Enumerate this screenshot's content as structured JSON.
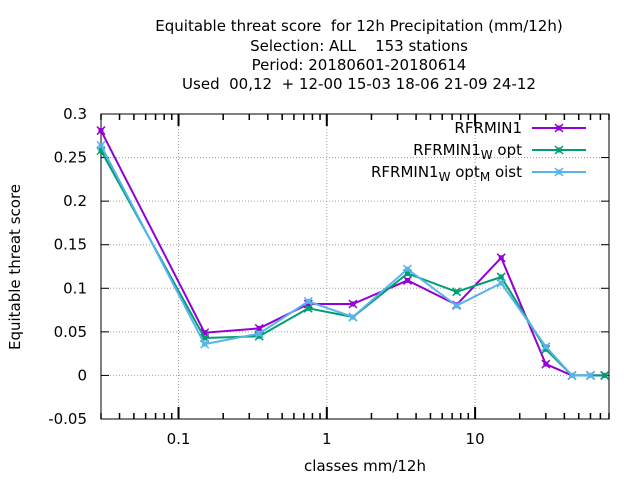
{
  "chart_data": {
    "type": "line",
    "title_lines": [
      "Equitable threat score  for 12h Precipitation (mm/12h)",
      "Selection: ALL    153 stations",
      "Period: 20180601-20180614",
      "Used  00,12  + 12-00 15-03 18-06 21-09 24-12"
    ],
    "xlabel": "classes mm/12h",
    "ylabel": "Equitable threat score",
    "xscale": "log",
    "xlim": [
      0.03,
      80
    ],
    "ylim": [
      -0.05,
      0.3
    ],
    "x_tick_labels": [
      {
        "value": 0.1,
        "label": "0.1"
      },
      {
        "value": 1,
        "label": "1"
      },
      {
        "value": 10,
        "label": "10"
      }
    ],
    "y_tick_labels": [
      {
        "value": 0.3,
        "label": "0.3"
      },
      {
        "value": 0.25,
        "label": "0.25"
      },
      {
        "value": 0.2,
        "label": "0.2"
      },
      {
        "value": 0.15,
        "label": "0.15"
      },
      {
        "value": 0.1,
        "label": "0.1"
      },
      {
        "value": 0.05,
        "label": "0.05"
      },
      {
        "value": 0,
        "label": "0"
      },
      {
        "value": -0.05,
        "label": "-0.05"
      }
    ],
    "grid": true,
    "legend_position": "top-right",
    "x": [
      0.03,
      0.15,
      0.35,
      0.75,
      1.5,
      3.5,
      7.5,
      15,
      30,
      45,
      60,
      75
    ],
    "series": [
      {
        "name": "RFRMIN1",
        "legend_parts": [
          {
            "text": "RFRMIN1",
            "sub": false
          }
        ],
        "color": "#9400d3",
        "values": [
          0.281,
          0.049,
          0.054,
          0.082,
          0.082,
          0.109,
          0.081,
          0.135,
          0.013,
          0.0,
          0.0,
          0.0
        ]
      },
      {
        "name": "RFRMIN1_W opt",
        "legend_parts": [
          {
            "text": "RFRMIN1",
            "sub": false
          },
          {
            "text": "W",
            "sub": true
          },
          {
            "text": " opt",
            "sub": false
          }
        ],
        "color": "#009e73",
        "values": [
          0.258,
          0.043,
          0.045,
          0.077,
          0.067,
          0.117,
          0.096,
          0.113,
          0.03,
          0.0,
          0.0,
          0.0
        ]
      },
      {
        "name": "RFRMIN1_W opt_M oist",
        "legend_parts": [
          {
            "text": "RFRMIN1",
            "sub": false
          },
          {
            "text": "W",
            "sub": true
          },
          {
            "text": " opt",
            "sub": false
          },
          {
            "text": "M",
            "sub": true
          },
          {
            "text": " oist",
            "sub": false
          }
        ],
        "color": "#56b4e9",
        "values": [
          0.264,
          0.036,
          0.048,
          0.085,
          0.067,
          0.122,
          0.08,
          0.106,
          0.033,
          0.0,
          0.0,
          null
        ]
      }
    ]
  }
}
